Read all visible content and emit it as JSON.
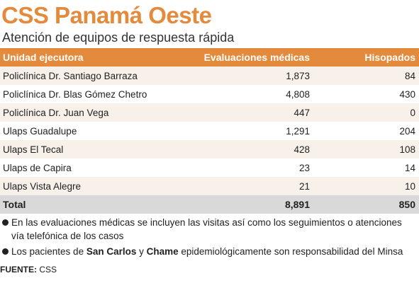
{
  "title": "CSS Panamá Oeste",
  "subtitle": "Atención de equipos de respuesta rápida",
  "table": {
    "headers": [
      "Unidad ejecutora",
      "Evaluaciones médicas",
      "Hisopados"
    ],
    "rows": [
      [
        "Policlínica Dr. Santiago Barraza",
        "1,873",
        "84"
      ],
      [
        "Policlínica Dr. Blas Gómez Chetro",
        "4,808",
        "430"
      ],
      [
        "Policlínica Dr. Juan Vega",
        "447",
        "0"
      ],
      [
        "Ulaps Guadalupe",
        "1,291",
        "204"
      ],
      [
        "Ulaps El Tecal",
        "428",
        "108"
      ],
      [
        "Ulaps de Capira",
        "23",
        "14"
      ],
      [
        "Ulaps Vista Alegre",
        "21",
        "10"
      ]
    ],
    "total": [
      "Total",
      "8,891",
      "850"
    ]
  },
  "notes": {
    "note1": "En las evaluaciones médicas se incluyen las visitas así como los seguimientos o atenciones vía telefónica de los casos",
    "note2": {
      "before": "Los pacientes de ",
      "bold1": "San Carlos",
      "mid": " y ",
      "bold2": "Chame",
      "after": " epidemiológicamente son responsabilidad del Minsa"
    }
  },
  "source": {
    "label": "FUENTE:",
    "value": " CSS"
  },
  "colors": {
    "accent": "#e38a3c",
    "row_alt": "#f7f1ea",
    "total_bg": "#d9d9d9"
  }
}
